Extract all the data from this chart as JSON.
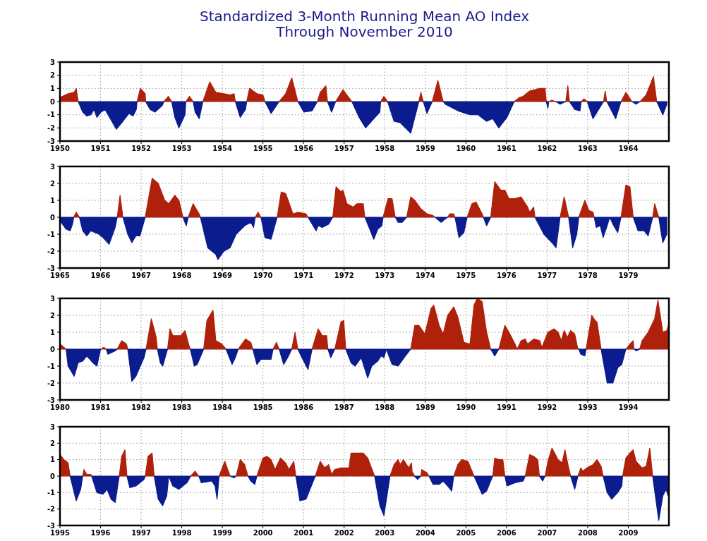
{
  "chart_data": [
    {
      "type": "area",
      "title": "Standardized 3-Month Running Mean AO Index",
      "subtitle": "Through November 2010",
      "grid": true,
      "series": [
        {
          "color": "#b0210c",
          "values": [
            0.3,
            0.6,
            0.7,
            1.0,
            0,
            null,
            null,
            null,
            null,
            null,
            null,
            null,
            null,
            null,
            null,
            null,
            null,
            null,
            0,
            1.0,
            0.6,
            0,
            null,
            null,
            null,
            0,
            0.4,
            0,
            null,
            null,
            null,
            0,
            0.4,
            0,
            null,
            null,
            0,
            1.5,
            0.7,
            0.6,
            0.5,
            0.6,
            0,
            null,
            null,
            0,
            1.0,
            0.6,
            0.5,
            0,
            null,
            0,
            0.6,
            1.8,
            0,
            null,
            null,
            0,
            0.7,
            1.2,
            0,
            null,
            0,
            0.9,
            0,
            null,
            null,
            null,
            null,
            0,
            0.4,
            0,
            null,
            null,
            null,
            0,
            0.7,
            0,
            null,
            0,
            1.6,
            0,
            null,
            null,
            null,
            null,
            null,
            null,
            null,
            null,
            0,
            0.3,
            0.4,
            0.8,
            1.0,
            1.0,
            0,
            null,
            0,
            0.1,
            0,
            null,
            0,
            1.2,
            0,
            null,
            null,
            0,
            0.2,
            0,
            null,
            0,
            0.8,
            0,
            null,
            0,
            0.7,
            0,
            null,
            0,
            0.5,
            1.9,
            0,
            null,
            null
          ]
        },
        {
          "color": "#0b1c8e",
          "values": [
            null,
            null,
            null,
            null,
            0,
            -0.8,
            -1.1,
            -1.0,
            -0.6,
            -1.2,
            -0.8,
            -0.6,
            -1.4,
            -2.1,
            -1.5,
            -0.9,
            -1.1,
            -0.6,
            0,
            null,
            null,
            0,
            -0.6,
            -0.8,
            -0.3,
            0,
            null,
            0,
            -1.2,
            -2.0,
            -1.0,
            0,
            null,
            0,
            -0.8,
            -1.3,
            0,
            null,
            null,
            null,
            null,
            null,
            0,
            -1.2,
            -0.6,
            0,
            null,
            null,
            null,
            0,
            -0.9,
            0,
            null,
            null,
            0,
            -0.8,
            -0.7,
            0,
            null,
            null,
            0,
            -0.8,
            0,
            null,
            0,
            -1.2,
            -2.0,
            -1.3,
            -0.8,
            0,
            null,
            0,
            -1.5,
            -1.6,
            -2.4,
            0,
            null,
            0,
            -0.9,
            0,
            null,
            0,
            -0.2,
            -0.7,
            -1.0,
            -1.0,
            -1.5,
            -1.3,
            -2.0,
            -1.2,
            0,
            null,
            null,
            null,
            null,
            null,
            0,
            -0.5,
            0,
            null,
            0,
            -0.2,
            0,
            null,
            0,
            -0.6,
            -0.7,
            0,
            null,
            0,
            -1.3,
            0,
            null,
            0,
            -1.3,
            0,
            null,
            0,
            -0.2,
            0,
            null,
            null,
            0,
            -1.0,
            -0.2
          ]
        }
      ],
      "xlim": [
        1950,
        1965
      ],
      "xticks": [
        1950,
        1951,
        1952,
        1953,
        1954,
        1955,
        1956,
        1957,
        1958,
        1959,
        1960,
        1961,
        1962,
        1963,
        1964
      ],
      "ylim": [
        -3,
        3
      ],
      "yticks": [
        -3,
        -2,
        -1,
        0,
        1,
        2,
        3
      ],
      "x": [
        1950,
        1950.2,
        1950.35,
        1950.4,
        1950.45,
        1950.56,
        1950.66,
        1950.76,
        1950.84,
        1950.91,
        1951.01,
        1951.11,
        1951.26,
        1951.39,
        1951.55,
        1951.7,
        1951.8,
        1951.88,
        1951.9,
        1951.98,
        1952.1,
        1952.11,
        1952.22,
        1952.34,
        1952.52,
        1952.56,
        1952.67,
        1952.75,
        1952.83,
        1952.93,
        1953.08,
        1953.1,
        1953.19,
        1953.28,
        1953.33,
        1953.43,
        1953.52,
        1953.69,
        1953.84,
        1954.04,
        1954.19,
        1954.29,
        1954.32,
        1954.44,
        1954.57,
        1954.6,
        1954.67,
        1954.85,
        1955,
        1955.05,
        1955.2,
        1955.4,
        1955.56,
        1955.71,
        1955.86,
        1956.01,
        1956.21,
        1956.34,
        1956.41,
        1956.55,
        1956.59,
        1956.69,
        1956.79,
        1956.97,
        1957.19,
        1957.37,
        1957.53,
        1957.73,
        1957.88,
        1957.9,
        1957.98,
        1958.07,
        1958.23,
        1958.38,
        1958.64,
        1958.84,
        1958.89,
        1958.95,
        1959.04,
        1959.17,
        1959.31,
        1959.44,
        1959.49,
        1959.8,
        1960.1,
        1960.3,
        1960.51,
        1960.66,
        1960.81,
        1961.01,
        1961.19,
        1961.31,
        1961.41,
        1961.57,
        1961.82,
        1961.95,
        1961.98,
        1962.02,
        1962.04,
        1962.12,
        1962.21,
        1962.32,
        1962.46,
        1962.51,
        1962.55,
        1962.68,
        1962.81,
        1962.84,
        1962.91,
        1962.99,
        1963.13,
        1963.39,
        1963.43,
        1963.47,
        1963.69,
        1963.82,
        1963.94,
        1964.09,
        1964.19,
        1964.29,
        1964.44,
        1964.62,
        1964.7,
        1964.85,
        1964.95
      ]
    },
    {
      "type": "area",
      "grid": true,
      "series": [
        {
          "color": "#b0210c",
          "values": [
            null,
            null,
            null,
            null,
            0,
            0.3,
            0,
            null,
            null,
            null,
            null,
            null,
            null,
            null,
            null,
            0,
            1.3,
            0,
            null,
            null,
            null,
            null,
            0,
            2.3,
            2.0,
            1.0,
            0.8,
            1.3,
            1.0,
            0,
            null,
            0,
            0.8,
            0.2,
            0,
            null,
            null,
            null,
            null,
            null,
            null,
            null,
            null,
            null,
            0,
            0.3,
            0,
            null,
            null,
            0,
            1.5,
            1.4,
            0.2,
            0.3,
            0.2,
            0,
            null,
            null,
            null,
            null,
            0,
            1.8,
            1.5,
            1.6,
            0.8,
            0.6,
            0.8,
            0.8,
            0,
            null,
            null,
            null,
            null,
            0,
            1.1,
            1.1,
            0,
            null,
            null,
            0,
            1.2,
            1.0,
            0.5,
            0.2,
            0.1,
            0,
            null,
            null,
            0,
            0.2,
            0.2,
            0,
            null,
            null,
            0,
            0.8,
            0.9,
            0.2,
            0,
            null,
            0,
            2.1,
            1.6,
            1.6,
            1.1,
            1.1,
            1.2,
            0.6,
            0.3,
            0.6,
            0,
            null,
            null,
            null,
            0,
            1.2,
            0,
            null,
            null,
            0,
            1.0,
            0.4,
            0.3,
            0,
            null,
            null,
            null,
            null,
            null,
            null,
            null,
            0,
            1.9,
            1.8,
            0,
            null,
            null,
            null,
            0,
            0.8,
            0,
            null,
            null
          ]
        },
        {
          "color": "#0b1c8e",
          "values": [
            -0.2,
            -0.7,
            -0.8,
            -0.4,
            0,
            null,
            0,
            -0.8,
            -1.1,
            -0.8,
            -0.9,
            -1.0,
            -1.2,
            -1.6,
            -0.6,
            0,
            null,
            0,
            -1.0,
            -1.5,
            -1.1,
            -1.1,
            0,
            null,
            null,
            null,
            null,
            null,
            null,
            0,
            -0.5,
            0,
            null,
            null,
            0,
            -1.8,
            -2.2,
            -2.5,
            -2.0,
            -1.8,
            -1.0,
            -0.5,
            -0.3,
            -0.6,
            0,
            null,
            0,
            -1.2,
            -1.3,
            0,
            null,
            null,
            null,
            null,
            null,
            0,
            -0.8,
            -0.5,
            -0.6,
            -0.4,
            0,
            null,
            null,
            null,
            null,
            null,
            null,
            null,
            0,
            -0.7,
            -1.3,
            -0.7,
            -0.5,
            0,
            null,
            null,
            0,
            -0.3,
            -0.3,
            0,
            null,
            null,
            null,
            null,
            null,
            0,
            -0.3,
            -0.1,
            0,
            null,
            null,
            0,
            -1.2,
            -0.9,
            0,
            null,
            null,
            null,
            0,
            -0.5,
            0,
            null,
            null,
            null,
            null,
            null,
            null,
            null,
            null,
            null,
            0,
            -1.0,
            -1.5,
            -1.8,
            0,
            null,
            0,
            -1.8,
            -1.0,
            0,
            null,
            null,
            null,
            0,
            -0.6,
            -0.5,
            -1.2,
            -0.5,
            0,
            -0.5,
            -0.9,
            0,
            null,
            null,
            0,
            -0.8,
            -0.8,
            -1.1,
            0,
            null,
            0,
            -1.5,
            -1.0
          ]
        }
      ],
      "xlim": [
        1965,
        1980
      ],
      "xticks": [
        1965,
        1966,
        1967,
        1968,
        1969,
        1970,
        1971,
        1972,
        1973,
        1974,
        1975,
        1976,
        1977,
        1978,
        1979
      ],
      "ylim": [
        -3,
        3
      ],
      "yticks": [
        -3,
        -2,
        -1,
        0,
        1,
        2,
        3
      ],
      "x": [
        1965,
        1965.15,
        1965.25,
        1965.31,
        1965.34,
        1965.4,
        1965.48,
        1965.56,
        1965.66,
        1965.76,
        1965.86,
        1965.96,
        1966.06,
        1966.21,
        1966.36,
        1966.41,
        1966.48,
        1966.55,
        1966.67,
        1966.77,
        1966.87,
        1966.97,
        1967.1,
        1967.27,
        1967.42,
        1967.58,
        1967.68,
        1967.83,
        1967.93,
        1968.03,
        1968.11,
        1968.16,
        1968.28,
        1968.43,
        1968.46,
        1968.64,
        1968.84,
        1968.89,
        1969.04,
        1969.19,
        1969.34,
        1969.55,
        1969.7,
        1969.77,
        1969.81,
        1969.88,
        1969.95,
        1970.05,
        1970.2,
        1970.35,
        1970.45,
        1970.56,
        1970.74,
        1970.86,
        1971.06,
        1971.11,
        1971.31,
        1971.36,
        1971.46,
        1971.62,
        1971.72,
        1971.8,
        1971.92,
        1971.97,
        1972.07,
        1972.22,
        1972.32,
        1972.47,
        1972.51,
        1972.63,
        1972.73,
        1972.83,
        1972.93,
        1972.96,
        1973.08,
        1973.18,
        1973.26,
        1973.33,
        1973.43,
        1973.54,
        1973.64,
        1973.74,
        1973.89,
        1974.04,
        1974.19,
        1974.24,
        1974.39,
        1974.49,
        1974.55,
        1974.6,
        1974.7,
        1974.73,
        1974.83,
        1974.95,
        1975.03,
        1975.15,
        1975.25,
        1975.4,
        1975.43,
        1975.51,
        1975.61,
        1975.71,
        1975.86,
        1975.96,
        1976.06,
        1976.21,
        1976.36,
        1976.52,
        1976.57,
        1976.67,
        1976.7,
        1976.92,
        1977.12,
        1977.22,
        1977.32,
        1977.42,
        1977.53,
        1977.63,
        1977.73,
        1977.78,
        1977.93,
        1978.03,
        1978.13,
        1978.16,
        1978.21,
        1978.31,
        1978.38,
        1978.48,
        1978.54,
        1978.64,
        1978.74,
        1978.82,
        1978.94,
        1979.04,
        1979.12,
        1979.24,
        1979.39,
        1979.49,
        1979.6,
        1979.65,
        1979.75,
        1979.85,
        1979.95
      ]
    },
    {
      "type": "area",
      "grid": true,
      "series": [
        {
          "color": "#b0210c",
          "values": [
            0.3,
            0,
            null,
            null,
            null,
            null,
            null,
            null,
            null,
            0,
            0.1,
            0,
            null,
            null,
            0,
            0.5,
            0.3,
            0,
            null,
            null,
            null,
            0,
            1.8,
            0.7,
            0,
            null,
            null,
            0,
            1.2,
            0.8,
            0.8,
            1.1,
            0.2,
            0,
            null,
            null,
            0,
            1.7,
            2.3,
            0.5,
            0.3,
            0,
            null,
            null,
            0,
            0.6,
            0.4,
            0,
            null,
            null,
            null,
            0,
            0.4,
            0,
            null,
            null,
            0,
            1.0,
            0,
            null,
            null,
            0,
            1.2,
            0.8,
            0.8,
            0,
            null,
            0,
            1.6,
            1.7,
            0,
            null,
            null,
            null,
            null,
            null,
            null,
            null,
            null,
            null,
            null,
            null,
            null,
            0,
            1.4,
            1.4,
            0.9,
            2.4,
            2.6,
            1.4,
            0.9,
            2.0,
            2.5,
            1.9,
            0.4,
            0.3,
            2.6,
            3.0,
            2.8,
            1.0,
            0,
            null,
            0,
            1.4,
            1.0,
            0.3,
            0,
            0.5,
            0.6,
            0.3,
            0.6,
            0.5,
            0.1,
            1.0,
            1.2,
            1.0,
            0.5,
            1.1,
            0.7,
            1.1,
            0.9,
            0.1,
            0,
            null,
            null,
            0,
            2.0,
            1.7,
            1.6,
            0,
            null,
            null,
            null,
            null,
            0,
            0.3,
            0.5,
            0,
            null,
            0,
            0.5,
            1.0,
            1.8,
            2.9,
            1.0,
            1.1,
            1.5
          ]
        },
        {
          "color": "#0b1c8e",
          "values": [
            null,
            0,
            -1.0,
            -1.6,
            -0.8,
            -0.7,
            -0.4,
            -0.8,
            -1.0,
            0,
            null,
            0,
            -0.3,
            -0.1,
            0,
            null,
            null,
            0,
            -1.9,
            -1.6,
            -0.5,
            0,
            null,
            null,
            0,
            -0.8,
            -1.0,
            0,
            null,
            null,
            null,
            null,
            null,
            0,
            -1.0,
            -0.9,
            0,
            null,
            null,
            null,
            null,
            0,
            -0.9,
            -0.5,
            0,
            null,
            null,
            0,
            -0.9,
            -0.6,
            -0.6,
            0,
            null,
            0,
            -0.9,
            -0.5,
            0,
            null,
            0,
            -0.5,
            -1.2,
            0,
            null,
            null,
            null,
            0,
            -0.5,
            0,
            null,
            null,
            0,
            -0.8,
            -1.0,
            -0.5,
            -1.7,
            -1.0,
            -0.7,
            -0.4,
            -0.5,
            0,
            -0.9,
            -1.0,
            -0.5,
            0,
            null,
            null,
            null,
            null,
            null,
            null,
            null,
            null,
            null,
            null,
            null,
            null,
            null,
            null,
            null,
            null,
            0,
            -0.4,
            0,
            null,
            null,
            null,
            null,
            null,
            null,
            null,
            null,
            null,
            null,
            null,
            null,
            null,
            null,
            null,
            null,
            null,
            null,
            null,
            0,
            -0.3,
            -0.4,
            0,
            null,
            null,
            null,
            0,
            -2.0,
            -2.0,
            -1.1,
            -0.9,
            0,
            null,
            null,
            0,
            -0.1,
            0,
            null,
            null,
            null,
            null,
            null,
            null,
            null
          ]
        }
      ],
      "xlim": [
        1980,
        1995
      ],
      "xticks": [
        1980,
        1981,
        1982,
        1983,
        1984,
        1985,
        1986,
        1987,
        1988,
        1989,
        1990,
        1991,
        1992,
        1993,
        1994
      ],
      "ylim": [
        -3,
        3
      ],
      "yticks": [
        -3,
        -2,
        -1,
        0,
        1,
        2,
        3
      ],
      "x": [
        1980,
        1980.15,
        1980.2,
        1980.35,
        1980.45,
        1980.56,
        1980.66,
        1980.81,
        1980.91,
        1981.0,
        1981.08,
        1981.14,
        1981.18,
        1981.36,
        1981.41,
        1981.52,
        1981.64,
        1981.67,
        1981.77,
        1981.87,
        1982.07,
        1982.12,
        1982.25,
        1982.37,
        1982.4,
        1982.47,
        1982.53,
        1982.65,
        1982.71,
        1982.78,
        1982.98,
        1983.08,
        1983.18,
        1983.21,
        1983.31,
        1983.38,
        1983.54,
        1983.62,
        1983.77,
        1983.84,
        1983.99,
        1984.09,
        1984.24,
        1984.32,
        1984.39,
        1984.57,
        1984.7,
        1984.75,
        1984.85,
        1984.95,
        1985.2,
        1985.25,
        1985.33,
        1985.4,
        1985.51,
        1985.61,
        1985.71,
        1985.79,
        1985.86,
        1985.96,
        1986.11,
        1986.21,
        1986.36,
        1986.46,
        1986.57,
        1986.6,
        1986.67,
        1986.77,
        1986.92,
        1986.99,
        1987.04,
        1987.17,
        1987.27,
        1987.42,
        1987.58,
        1987.68,
        1987.83,
        1987.91,
        1987.98,
        1988.04,
        1988.18,
        1988.33,
        1988.48,
        1988.64,
        1988.74,
        1988.84,
        1988.99,
        1989.14,
        1989.21,
        1989.34,
        1989.44,
        1989.55,
        1989.7,
        1989.8,
        1989.95,
        1990.1,
        1990.2,
        1990.28,
        1990.4,
        1990.51,
        1990.61,
        1990.71,
        1990.81,
        1990.96,
        1991.06,
        1991.21,
        1991.26,
        1991.36,
        1991.46,
        1991.52,
        1991.67,
        1991.82,
        1991.87,
        1992.02,
        1992.17,
        1992.27,
        1992.35,
        1992.42,
        1992.5,
        1992.58,
        1992.68,
        1992.75,
        1992.78,
        1992.83,
        1992.93,
        1992.96,
        1993.1,
        1993.18,
        1993.23,
        1993.33,
        1993.48,
        1993.62,
        1993.74,
        1993.84,
        1993.94,
        1994.04,
        1994.12,
        1994.14,
        1994.2,
        1994.28,
        1994.34,
        1994.49,
        1994.65,
        1994.73,
        1994.85,
        1994.95,
        1995
      ]
    },
    {
      "type": "area",
      "grid": true,
      "series": [
        {
          "color": "#b0210c",
          "values": [
            1.3,
            1.0,
            0.8,
            0,
            null,
            null,
            null,
            0,
            0.4,
            0.1,
            0.1,
            0,
            null,
            null,
            null,
            null,
            null,
            0,
            1.2,
            1.6,
            0,
            null,
            null,
            null,
            0,
            1.2,
            1.4,
            0,
            null,
            null,
            null,
            null,
            null,
            null,
            null,
            0,
            0.3,
            0,
            null,
            null,
            null,
            null,
            0,
            0.9,
            0,
            null,
            0,
            1.0,
            0.7,
            0,
            null,
            null,
            0,
            1.1,
            1.2,
            1.0,
            0.4,
            1.1,
            0.8,
            0.4,
            0.9,
            0,
            null,
            null,
            0,
            0.9,
            0.5,
            0.7,
            0.1,
            0.4,
            0.5,
            0.5,
            1.4,
            1.4,
            1.4,
            1.1,
            0,
            null,
            null,
            0,
            0.7,
            1.0,
            0.7,
            1.0,
            0.5,
            0.8,
            0.1,
            0.2,
            0,
            null,
            0,
            0.4,
            0.2,
            0,
            null,
            null,
            null,
            null,
            null,
            0,
            0.7,
            1.0,
            0.9,
            0.3,
            0,
            null,
            null,
            0,
            1.1,
            1.0,
            1.0,
            0,
            null,
            null,
            null,
            0,
            1.3,
            1.2,
            1.0,
            0,
            null,
            0,
            0.9,
            1.7,
            1.0,
            0.8,
            1.6,
            0.5,
            0,
            null,
            0,
            0.5,
            0.3,
            0.5,
            0.7,
            1.0,
            0.6,
            0,
            null,
            null,
            null,
            null,
            0,
            1.1,
            1.4,
            1.6,
            0.9,
            0.5,
            0.6,
            1.7,
            0,
            null,
            null,
            null,
            null
          ]
        },
        {
          "color": "#0b1c8e",
          "values": [
            null,
            null,
            null,
            0,
            -1.0,
            -1.5,
            -0.8,
            0,
            null,
            null,
            null,
            0,
            -1.0,
            -1.1,
            -0.8,
            -1.4,
            -1.6,
            0,
            null,
            null,
            0,
            -0.7,
            -0.6,
            -0.2,
            0,
            null,
            null,
            0,
            -1.4,
            -1.8,
            -1.2,
            0,
            -0.6,
            -0.8,
            -0.4,
            0,
            null,
            0,
            -0.4,
            -0.3,
            -0.6,
            -1.4,
            0,
            null,
            0,
            -0.1,
            0,
            null,
            null,
            0,
            -0.3,
            -0.5,
            0,
            null,
            null,
            null,
            null,
            null,
            null,
            null,
            null,
            0,
            -1.5,
            -1.4,
            0,
            null,
            null,
            null,
            null,
            null,
            null,
            null,
            null,
            null,
            null,
            null,
            0,
            -1.8,
            -2.4,
            0,
            null,
            null,
            null,
            null,
            null,
            null,
            null,
            null,
            0,
            -0.2,
            0,
            null,
            null,
            0,
            -0.5,
            -0.5,
            -0.3,
            -0.6,
            -0.9,
            0,
            null,
            null,
            null,
            null,
            0,
            -1.1,
            -0.9,
            0,
            null,
            null,
            null,
            0,
            -0.6,
            -0.4,
            -0.3,
            0,
            null,
            null,
            null,
            0,
            -0.3,
            0,
            null,
            null,
            null,
            null,
            null,
            null,
            0,
            -0.8,
            0,
            null,
            null,
            null,
            null,
            null,
            null,
            0,
            -1.0,
            -1.4,
            -1.0,
            -0.6,
            0,
            null,
            null,
            null,
            null,
            null,
            null,
            null,
            0,
            -2.7,
            -1.2,
            -0.8,
            -1.2
          ]
        }
      ],
      "xlim": [
        1995,
        2010
      ],
      "xticks": [
        1995,
        1996,
        1997,
        1998,
        1999,
        2000,
        2001,
        2002,
        2003,
        2004,
        2005,
        2006,
        2007,
        2008,
        2009
      ],
      "ylim": [
        -3,
        3
      ],
      "yticks": [
        -3,
        -2,
        -1,
        0,
        1,
        2,
        3
      ],
      "x": [
        1995,
        1995.1,
        1995.2,
        1995.25,
        1995.35,
        1995.4,
        1995.51,
        1995.56,
        1995.59,
        1995.66,
        1995.76,
        1995.78,
        1995.91,
        1996.06,
        1996.16,
        1996.26,
        1996.36,
        1996.46,
        1996.52,
        1996.6,
        1996.65,
        1996.72,
        1996.87,
        1997.07,
        1997.1,
        1997.17,
        1997.27,
        1997.32,
        1997.42,
        1997.53,
        1997.63,
        1997.68,
        1997.78,
        1997.93,
        1998.13,
        1998.22,
        1998.33,
        1998.42,
        1998.48,
        1998.74,
        1998.82,
        1998.87,
        1998.92,
        1999.06,
        1999.19,
        1999.29,
        1999.34,
        1999.44,
        1999.55,
        1999.63,
        1999.7,
        1999.8,
        1999.85,
        2000,
        2000.1,
        2000.2,
        2000.3,
        2000.43,
        2000.56,
        2000.64,
        2000.76,
        2000.81,
        2000.91,
        2001.06,
        2001.29,
        2001.41,
        2001.52,
        2001.62,
        2001.69,
        2001.77,
        2001.92,
        2002.12,
        2002.17,
        2002.32,
        2002.47,
        2002.58,
        2002.75,
        2002.88,
        2002.98,
        2003.13,
        2003.23,
        2003.33,
        2003.38,
        2003.46,
        2003.59,
        2003.66,
        2003.68,
        2003.7,
        2003.73,
        2003.81,
        2003.89,
        2003.91,
        2004.04,
        2004.09,
        2004.19,
        2004.34,
        2004.44,
        2004.55,
        2004.65,
        2004.7,
        2004.8,
        2004.9,
        2005.05,
        2005.15,
        2005.2,
        2005.4,
        2005.51,
        2005.66,
        2005.71,
        2005.81,
        2005.91,
        2005.96,
        2006.01,
        2006.21,
        2006.41,
        2006.46,
        2006.57,
        2006.67,
        2006.77,
        2006.81,
        2006.89,
        2006.95,
        2007.02,
        2007.12,
        2007.27,
        2007.37,
        2007.44,
        2007.53,
        2007.58,
        2007.68,
        2007.76,
        2007.83,
        2007.88,
        2007.98,
        2008.13,
        2008.23,
        2008.33,
        2008.38,
        2008.48,
        2008.59,
        2008.74,
        2008.84,
        2008.86,
        2008.94,
        2009.04,
        2009.12,
        2009.19,
        2009.34,
        2009.44,
        2009.53,
        2009.6,
        2009.75,
        2009.85,
        2009.93,
        2009.98
      ]
    }
  ]
}
